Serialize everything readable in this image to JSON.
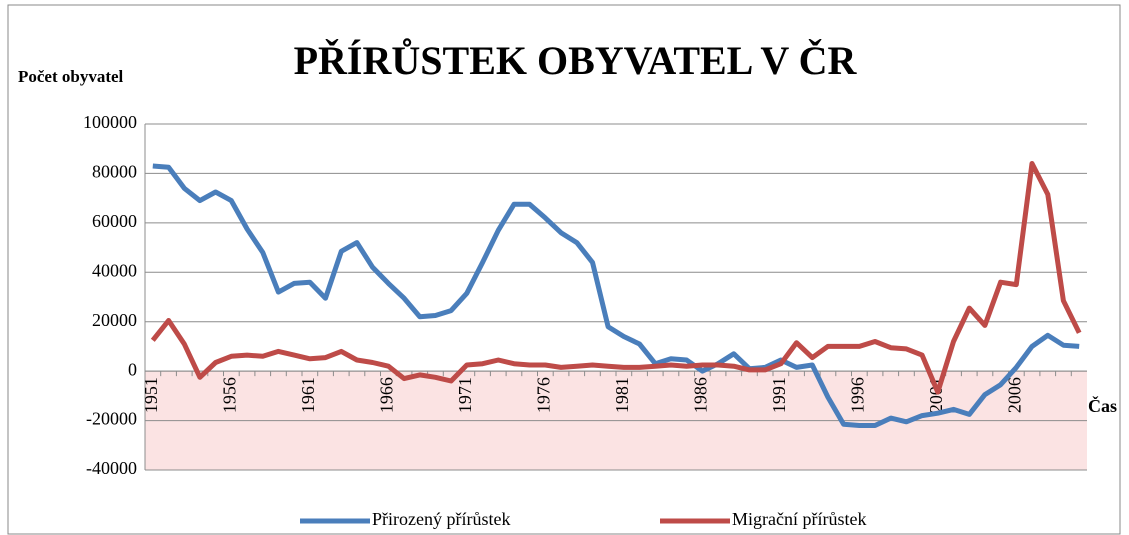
{
  "chart_data": {
    "type": "line",
    "title": "PŘÍRŮSTEK OBYVATEL V ČR",
    "y_label": "Počet obyvatel",
    "x_label": "Čas",
    "categories": [
      "1951",
      null,
      null,
      null,
      null,
      "1956",
      null,
      null,
      null,
      null,
      "1961",
      null,
      null,
      null,
      null,
      "1966",
      null,
      null,
      null,
      null,
      "1971",
      null,
      null,
      null,
      null,
      "1976",
      null,
      null,
      null,
      null,
      "1981",
      null,
      null,
      null,
      null,
      "1986",
      null,
      null,
      null,
      null,
      "1991",
      null,
      null,
      null,
      null,
      "1996",
      null,
      null,
      null,
      null,
      "2001",
      null,
      null,
      null,
      null,
      "2006",
      null,
      null,
      null,
      null
    ],
    "series": [
      {
        "name": "Přirozený přírůstek",
        "color": "#4a7ebb",
        "values": [
          83000,
          82500,
          74000,
          69000,
          72500,
          69000,
          57500,
          48000,
          32000,
          35500,
          36000,
          29500,
          48500,
          52000,
          42000,
          35500,
          29500,
          22000,
          22500,
          24500,
          31500,
          44000,
          57000,
          67500,
          67500,
          62000,
          56000,
          52000,
          44000,
          18000,
          14000,
          11000,
          3000,
          5000,
          4500,
          0,
          3000,
          7000,
          1000,
          1500,
          4500,
          1500,
          2500,
          -10500,
          -21500,
          -22000,
          -22000,
          -19000,
          -20500,
          -18000,
          -17000,
          -15500,
          -17500,
          -9500,
          -5500,
          1500,
          10000,
          14500,
          10500,
          10000
        ]
      },
      {
        "name": "Migrační přírůstek",
        "color": "#be4b48",
        "values": [
          12500,
          20500,
          11000,
          -2500,
          3500,
          6000,
          6500,
          6000,
          8000,
          6500,
          5000,
          5500,
          8000,
          4500,
          3500,
          2000,
          -3000,
          -1500,
          -2500,
          -4000,
          2500,
          3000,
          4500,
          3000,
          2500,
          2500,
          1500,
          2000,
          2500,
          2000,
          1500,
          1500,
          2000,
          2500,
          2000,
          2500,
          2500,
          2000,
          500,
          500,
          3000,
          11500,
          5500,
          10000,
          10000,
          10000,
          12000,
          9500,
          9000,
          6500,
          -8500,
          12000,
          25500,
          18500,
          36000,
          35000,
          84000,
          71500,
          28500,
          15500
        ]
      }
    ],
    "ylim": [
      -40000,
      100000
    ],
    "yticks": [
      -40000,
      -20000,
      0,
      20000,
      40000,
      60000,
      80000,
      100000
    ],
    "grid": true,
    "negative_region_color": "#fbe3e3",
    "legend": "bottom"
  }
}
